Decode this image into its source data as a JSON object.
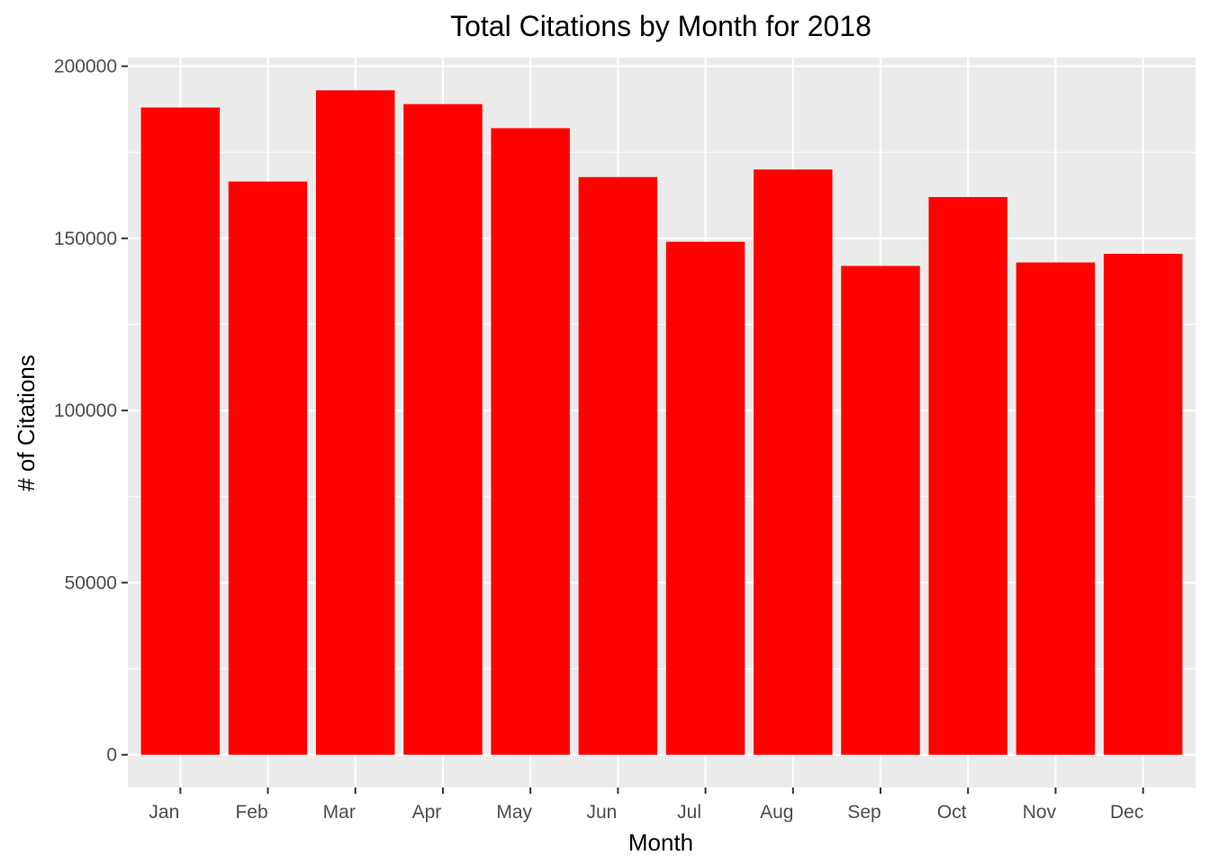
{
  "chart_data": {
    "type": "bar",
    "title": "Total Citations by Month for 2018",
    "xlabel": "Month",
    "ylabel": "# of Citations",
    "categories": [
      "Jan",
      "Feb",
      "Mar",
      "Apr",
      "May",
      "Jun",
      "Jul",
      "Aug",
      "Sep",
      "Oct",
      "Nov",
      "Dec"
    ],
    "values": [
      188000,
      166500,
      193000,
      189000,
      182000,
      167800,
      149000,
      170000,
      142000,
      162000,
      143000,
      145500
    ],
    "ylim": [
      -9500,
      202500
    ],
    "yticks": [
      0,
      50000,
      100000,
      150000,
      200000
    ],
    "ytick_labels": [
      "0",
      "50000",
      "100000",
      "150000",
      "200000"
    ],
    "grid": true,
    "legend": "none",
    "colors": {
      "bar": "#ff0000",
      "panel_background": "#ebebeb",
      "grid_line": "#ffffff"
    }
  }
}
